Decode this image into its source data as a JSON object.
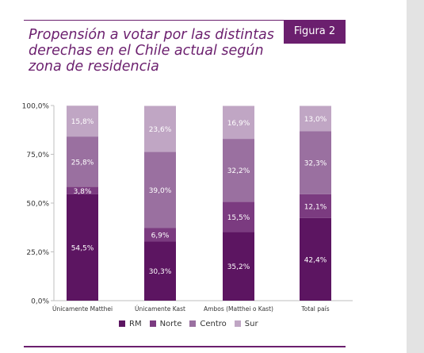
{
  "figure_badge": "Figura 2",
  "chart_data": {
    "type": "bar",
    "stacked": true,
    "title": "Propensión a votar por las distintas\nderechas en el Chile actual según\nzona de residencia",
    "categories": [
      "Únicamente Matthei",
      "Únicamente Kast",
      "Ambos (Matthei o Kast)",
      "Total país"
    ],
    "series": [
      {
        "name": "RM",
        "color": "#5c1561",
        "values": [
          54.5,
          30.3,
          35.2,
          42.4
        ],
        "labels": [
          "54,5%",
          "30,3%",
          "35,2%",
          "42,4%"
        ]
      },
      {
        "name": "Norte",
        "color": "#7b3b80",
        "values": [
          3.8,
          6.9,
          15.5,
          12.1
        ],
        "labels": [
          "3,8%",
          "6,9%",
          "15,5%",
          "12,1%"
        ]
      },
      {
        "name": "Centro",
        "color": "#9a70a0",
        "values": [
          25.8,
          39.0,
          32.2,
          32.3
        ],
        "labels": [
          "25,8%",
          "39,0%",
          "32,2%",
          "32,3%"
        ]
      },
      {
        "name": "Sur",
        "color": "#c0a6c4",
        "values": [
          15.8,
          23.6,
          16.9,
          13.0
        ],
        "labels": [
          "15,8%",
          "23,6%",
          "16,9%",
          "13,0%"
        ]
      }
    ],
    "y_ticks": [
      "0,0%",
      "25,0%",
      "50,0%",
      "75,0%",
      "100,0%"
    ],
    "ylim": [
      0,
      100
    ],
    "grid": false,
    "legend_position": "bottom"
  }
}
